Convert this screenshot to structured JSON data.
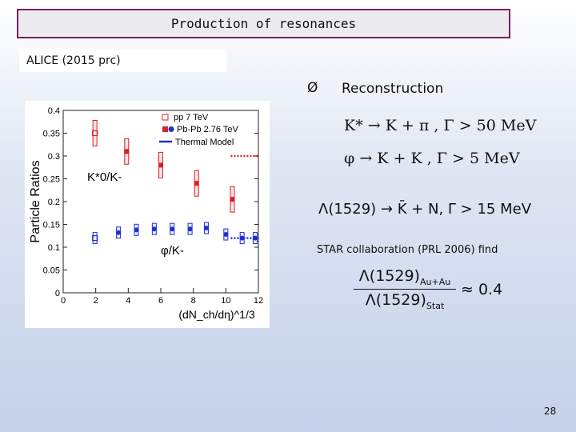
{
  "header": {
    "title": "Production of  resonances",
    "subtitle": "ALICE  (2015 prc)"
  },
  "main": {
    "bullet_symbol": "Ø",
    "bullet_text": "Reconstruction",
    "formula_kstar": "K* → K + π ,   Γ > 50 MeV",
    "formula_phi": "φ → K + K ,   Γ > 5 MeV",
    "formula_lambda": "Λ(1529) → K̄ + N,   Γ > 15 MeV",
    "star_note": "STAR collaboration (PRL 2006) find",
    "ratio_num": "Λ(1529)",
    "ratio_num_sub": "Au+Au",
    "ratio_den": "Λ(1529)",
    "ratio_den_sub": "Stat",
    "ratio_value": "≈ 0.4"
  },
  "footer": {
    "page_number": "28"
  },
  "colors": {
    "red": "#d8202a",
    "blue": "#1f2fd6",
    "title_border": "#7d1f63"
  },
  "chart_data": {
    "type": "scatter",
    "xlabel": "(dN_ch/dη)^1/3",
    "ylabel": "Particle Ratios",
    "xlim": [
      0,
      12
    ],
    "ylim": [
      0,
      0.4
    ],
    "x_ticks": [
      0,
      2,
      4,
      6,
      8,
      10,
      12
    ],
    "y_ticks": [
      0,
      0.05,
      0.1,
      0.15,
      0.2,
      0.25,
      0.3,
      0.35,
      0.4
    ],
    "legend": [
      "pp 7 TeV",
      "Pb-Pb 2.76 TeV",
      "Thermal Model"
    ],
    "annotations": [
      "K*0/K-",
      "φ/K-"
    ],
    "series": [
      {
        "name": "pp 7 TeV",
        "ratio": "K*0/K-",
        "points": [
          [
            1.95,
            0.35
          ]
        ]
      },
      {
        "name": "Pb-Pb 2.76 TeV",
        "ratio": "K*0/K-",
        "points": [
          [
            3.9,
            0.31
          ],
          [
            6.0,
            0.28
          ],
          [
            8.2,
            0.24
          ],
          [
            10.4,
            0.205
          ]
        ]
      },
      {
        "name": "pp 7 TeV",
        "ratio": "φ/K-",
        "points": [
          [
            1.95,
            0.12
          ]
        ]
      },
      {
        "name": "Pb-Pb 2.76 TeV",
        "ratio": "φ/K-",
        "points": [
          [
            3.4,
            0.132
          ],
          [
            4.5,
            0.138
          ],
          [
            5.6,
            0.14
          ],
          [
            6.7,
            0.14
          ],
          [
            7.8,
            0.14
          ],
          [
            8.8,
            0.142
          ],
          [
            10.0,
            0.128
          ],
          [
            11.0,
            0.12
          ],
          [
            11.8,
            0.12
          ]
        ]
      },
      {
        "name": "Thermal Model",
        "ratio": "K*0/K-",
        "type": "line",
        "points": [
          [
            10.3,
            0.3
          ],
          [
            12.0,
            0.3
          ]
        ]
      },
      {
        "name": "Thermal Model",
        "ratio": "φ/K-",
        "type": "line",
        "points": [
          [
            10.3,
            0.12
          ],
          [
            12.0,
            0.12
          ]
        ]
      }
    ]
  }
}
